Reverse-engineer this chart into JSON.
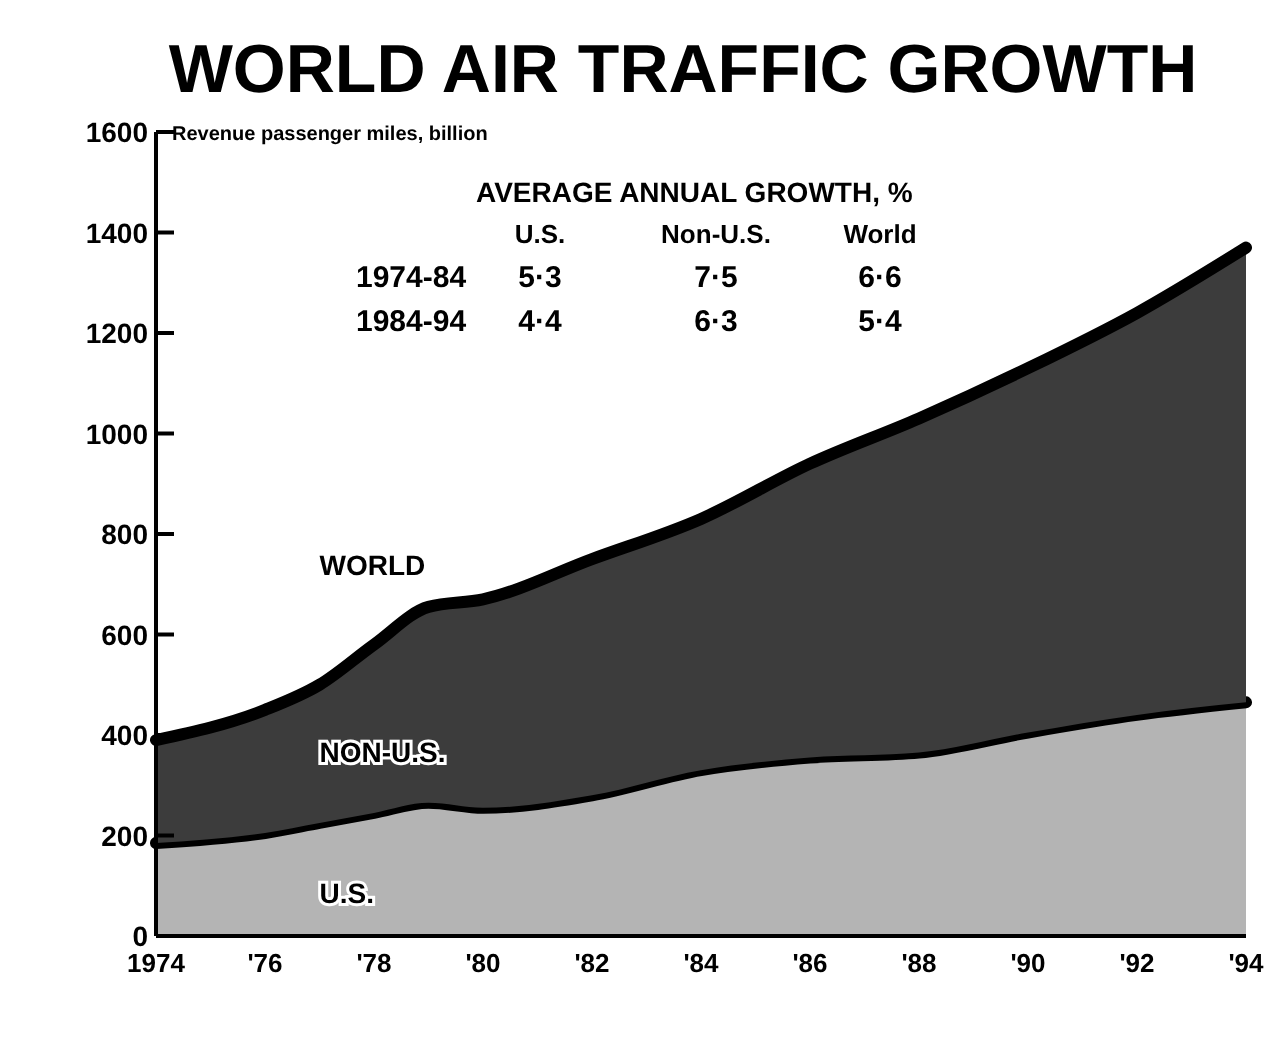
{
  "chart_data": {
    "type": "area",
    "stacked": true,
    "title": "WORLD AIR TRAFFIC GROWTH",
    "ylabel": "Revenue passenger miles, billion",
    "x": [
      1974,
      1976,
      1977,
      1978,
      1979,
      1980,
      1982,
      1984,
      1986,
      1988,
      1990,
      1992,
      1994
    ],
    "series": [
      {
        "name": "U.S.",
        "color": "#b4b4b4",
        "values": [
          185,
          205,
          225,
          245,
          265,
          255,
          280,
          330,
          355,
          365,
          405,
          440,
          465
        ]
      },
      {
        "name": "NON-U.S.",
        "color": "#3c3c3c",
        "values": [
          205,
          245,
          275,
          335,
          390,
          415,
          470,
          500,
          585,
          665,
          725,
          800,
          905
        ]
      }
    ],
    "xlim": [
      1974,
      1994
    ],
    "xticks": [
      1974,
      {
        "value": 1976,
        "label": "'76"
      },
      {
        "value": 1978,
        "label": "'78"
      },
      {
        "value": 1980,
        "label": "'80"
      },
      {
        "value": 1982,
        "label": "'82"
      },
      {
        "value": 1984,
        "label": "'84"
      },
      {
        "value": 1986,
        "label": "'86"
      },
      {
        "value": 1988,
        "label": "'88"
      },
      {
        "value": 1990,
        "label": "'90"
      },
      {
        "value": 1992,
        "label": "'92"
      },
      {
        "value": 1994,
        "label": "'94"
      }
    ],
    "ylim": [
      0,
      1600
    ],
    "yticks": [
      0,
      200,
      400,
      600,
      800,
      1000,
      1200,
      1400,
      1600
    ],
    "annotations": [
      "WORLD",
      "AVERAGE ANNUAL GROWTH, %",
      "U.S.",
      "Non-U.S.",
      "World",
      "1974-84",
      "5·3",
      "7·5",
      "6·6",
      "1984-94",
      "4·4",
      "6·3",
      "5·4"
    ],
    "grid": false
  }
}
